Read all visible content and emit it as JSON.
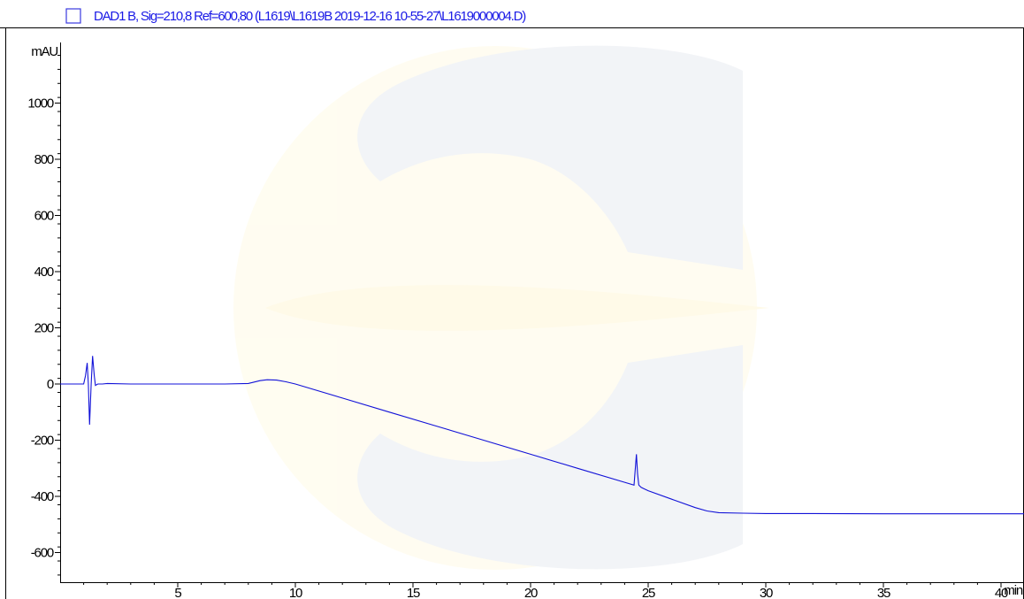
{
  "chart_data": {
    "type": "line",
    "legend_text": "DAD1 B, Sig=210,8 Ref=600,80 (L1619\\L1619B 2019-12-16 10-55-27\\L1619000004.D)",
    "ylabel": "mAU",
    "xlabel": "min",
    "xlim": [
      0,
      41.3
    ],
    "ylim": [
      -680,
      1180
    ],
    "x_ticks": [
      5,
      10,
      15,
      20,
      25,
      30,
      35,
      40
    ],
    "x_tick_labels": [
      "5",
      "10",
      "15",
      "20",
      "25",
      "30",
      "35",
      "40"
    ],
    "y_ticks": [
      -600,
      -400,
      -200,
      0,
      200,
      400,
      600,
      800,
      1000
    ],
    "y_tick_labels": [
      "-600",
      "-400",
      "-200",
      "0",
      "200",
      "400",
      "600",
      "800",
      "1000"
    ],
    "series": [
      {
        "color": "#1212d8",
        "x": [
          0,
          1.0,
          1.08,
          1.15,
          1.2,
          1.25,
          1.32,
          1.38,
          1.45,
          1.5,
          1.6,
          1.8,
          2.0,
          3,
          5,
          7,
          8,
          8.5,
          8.8,
          9.2,
          9.6,
          10,
          12,
          14,
          16,
          18,
          20,
          22,
          24,
          24.4,
          24.5,
          24.55,
          24.6,
          24.7,
          24.8,
          25,
          26,
          27,
          27.5,
          28,
          29,
          30,
          32,
          35,
          38,
          41.3
        ],
        "y": [
          0,
          0,
          30,
          75,
          0,
          -145,
          0,
          100,
          30,
          -5,
          0,
          0,
          2,
          0,
          0,
          0,
          2,
          12,
          15,
          14,
          8,
          0,
          -50,
          -100,
          -150,
          -200,
          -250,
          -300,
          -350,
          -360,
          -250,
          -320,
          -360,
          -368,
          -372,
          -380,
          -410,
          -440,
          -452,
          -458,
          -460,
          -461,
          -461,
          -462,
          -462,
          -462
        ]
      }
    ],
    "grid": false
  }
}
